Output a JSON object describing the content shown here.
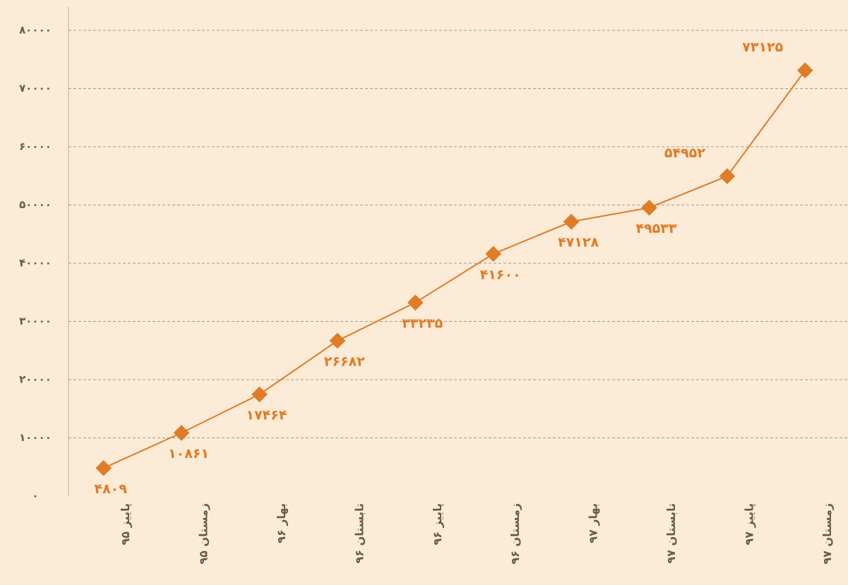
{
  "chart_data": {
    "type": "line",
    "categories": [
      "پاییز ۹۵",
      "زمستان ۹۵",
      "بهار ۹۶",
      "تابستان ۹۶",
      "پاییز ۹۶",
      "زمستان ۹۶",
      "بهار ۹۷",
      "تابستان ۹۷",
      "پاییز ۹۷",
      "زمستان ۹۷"
    ],
    "values": [
      4809,
      10861,
      17464,
      26682,
      33235,
      41600,
      47128,
      49533,
      54952,
      73125
    ],
    "value_labels": [
      "۴۸۰۹",
      "۱۰۸۶۱",
      "۱۷۴۶۴",
      "۲۶۶۸۲",
      "۳۳۲۳۵",
      "۴۱۶۰۰",
      "۴۷۱۲۸",
      "۴۹۵۳۳",
      "۵۴۹۵۲",
      "۷۳۱۲۵"
    ],
    "color": "#e07b28",
    "ylim": [
      0,
      80000
    ],
    "yticks": [
      {
        "value": 0,
        "label": "۰"
      },
      {
        "value": 10000,
        "label": "۱۰۰۰۰"
      },
      {
        "value": 20000,
        "label": "۲۰۰۰۰"
      },
      {
        "value": 30000,
        "label": "۳۰۰۰۰"
      },
      {
        "value": 40000,
        "label": "۴۰۰۰۰"
      },
      {
        "value": 50000,
        "label": "۵۰۰۰۰"
      },
      {
        "value": 60000,
        "label": "۶۰۰۰۰"
      },
      {
        "value": 70000,
        "label": "۷۰۰۰۰"
      },
      {
        "value": 80000,
        "label": "۸۰۰۰۰"
      }
    ],
    "grid": true
  }
}
